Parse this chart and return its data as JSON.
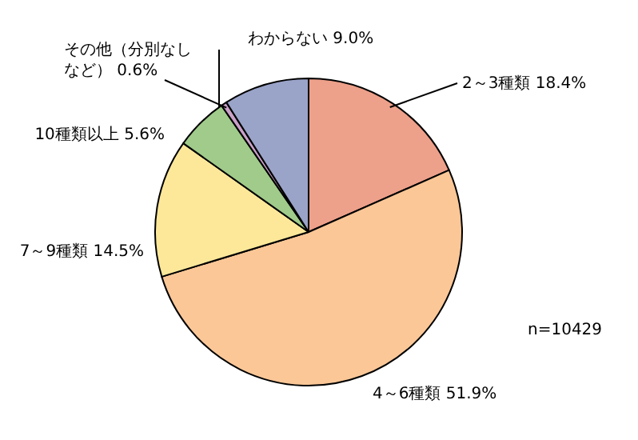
{
  "chart_data": {
    "type": "pie",
    "categories": [
      "2～3種類",
      "4～6種類",
      "7～9種類",
      "10種類以上",
      "その他（分別なしなど）",
      "わからない"
    ],
    "values": [
      18.4,
      51.9,
      14.5,
      5.6,
      0.6,
      9.0
    ],
    "value_labels": [
      "18.4%",
      "51.9%",
      "14.5%",
      "5.6%",
      "0.6%",
      "9.0%"
    ],
    "colors": [
      "#eda08a",
      "#fbc797",
      "#fde89a",
      "#a0cb8a",
      "#c9a0c8",
      "#9aa3c8"
    ],
    "annotations": [
      "n=10429"
    ],
    "legend": false
  }
}
